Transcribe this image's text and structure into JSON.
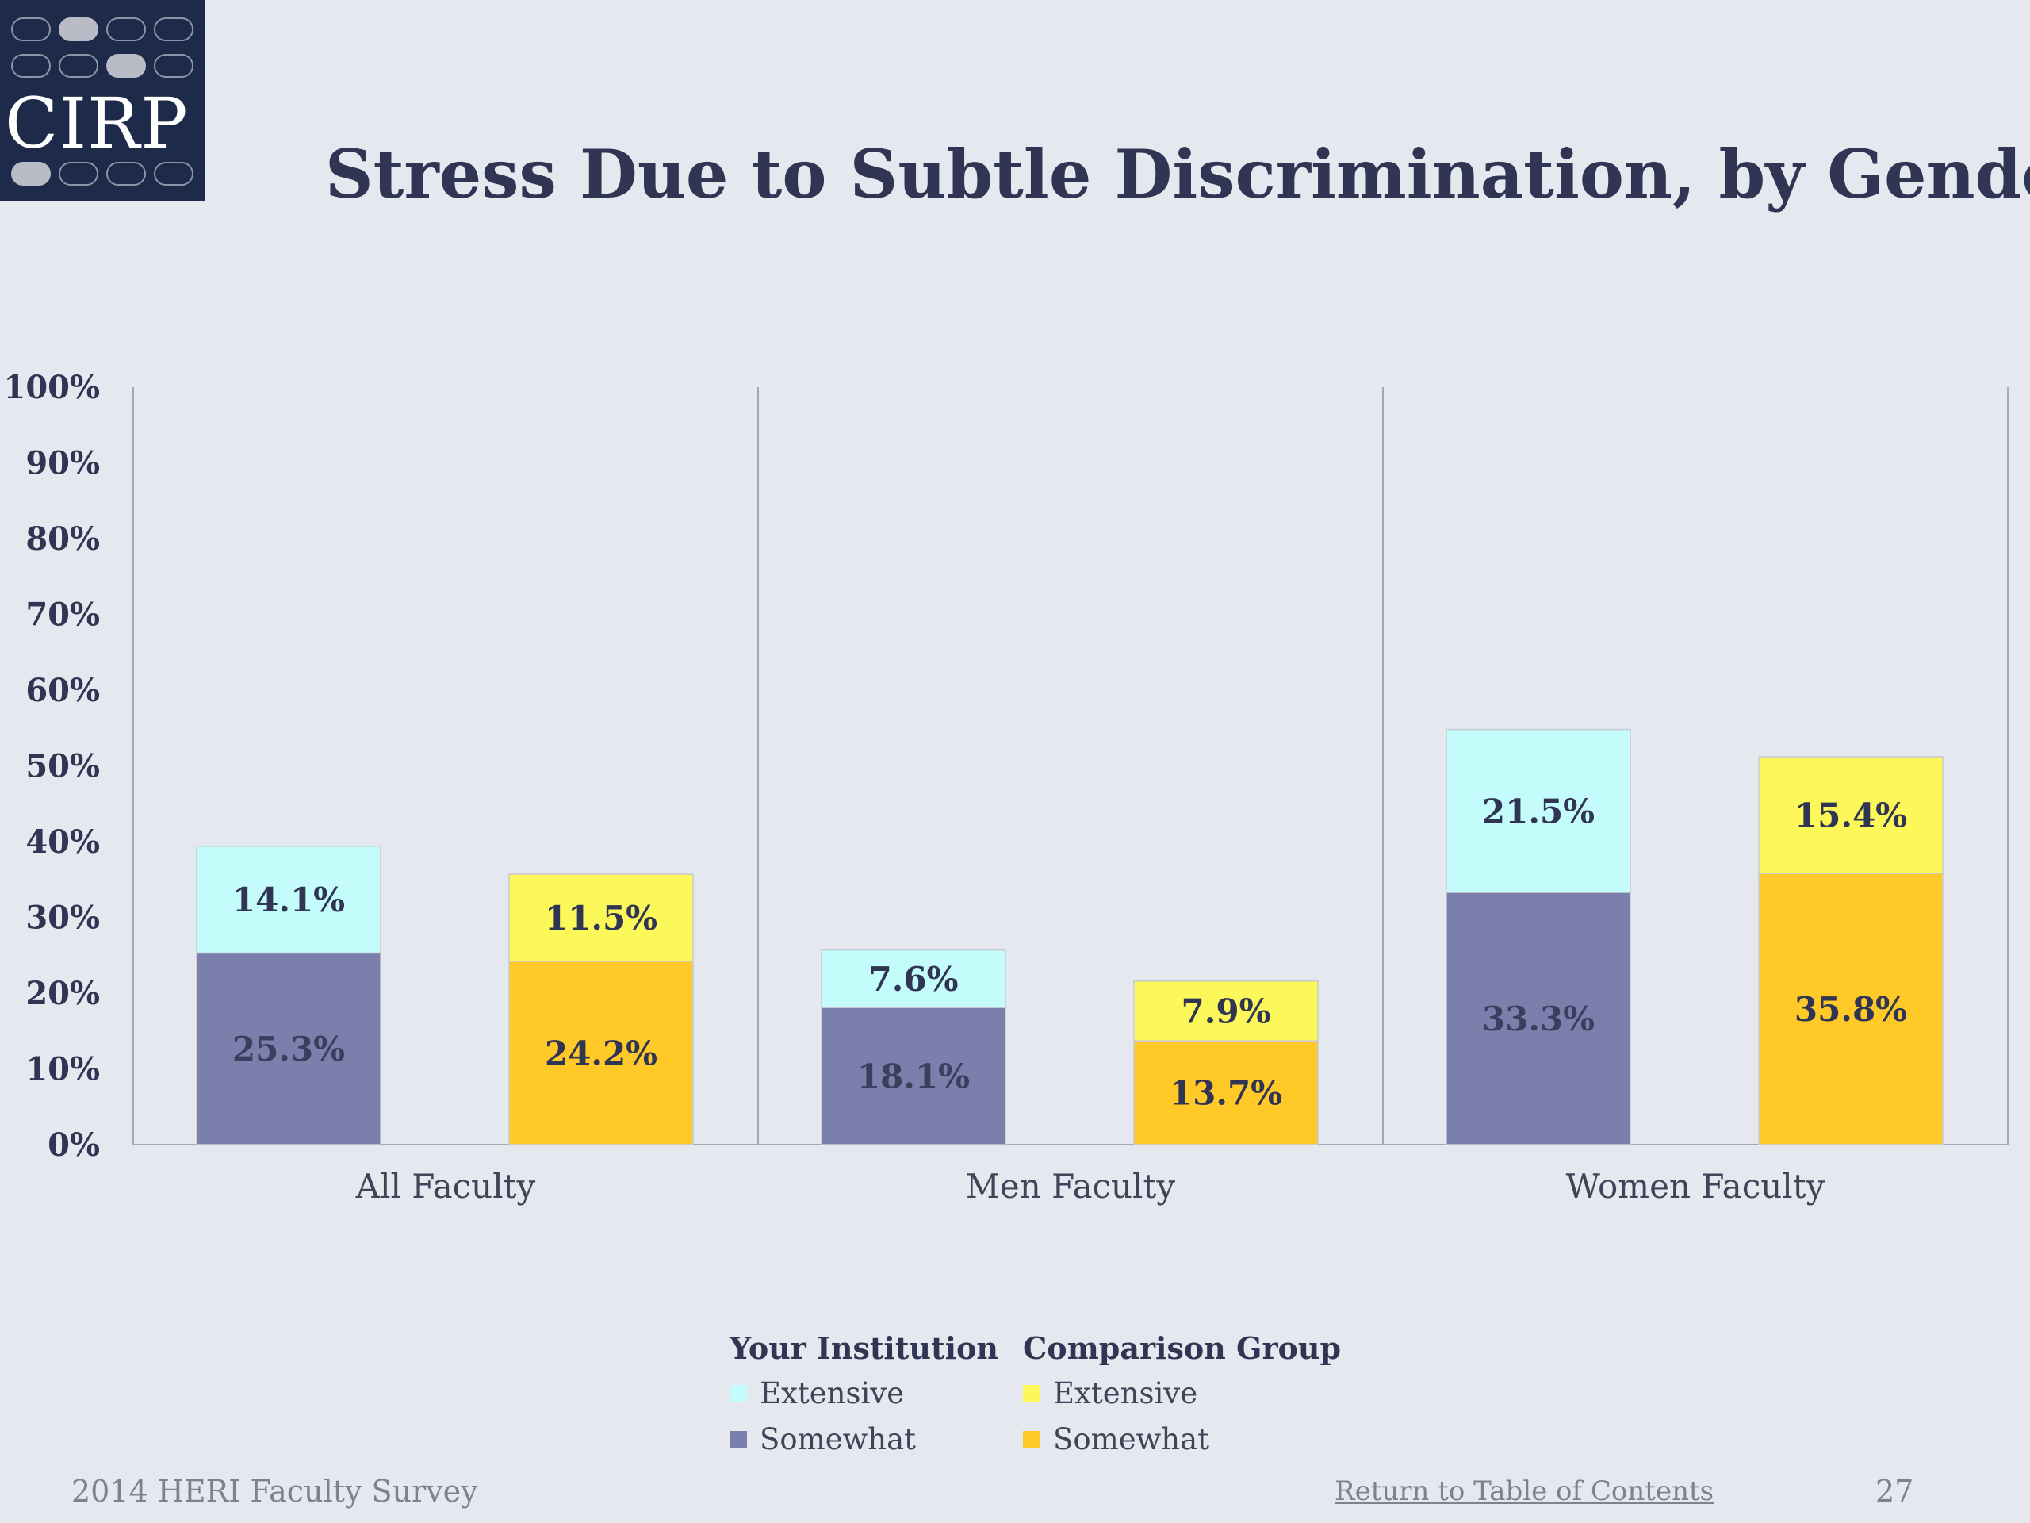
{
  "logo": {
    "text": "CIRP"
  },
  "title": "Stress Due to Subtle Discrimination, by Gender",
  "colors": {
    "inst_extensive": "#c4fbfb",
    "inst_somewhat": "#7a80ab",
    "comp_extensive": "#fdf85a",
    "comp_somewhat": "#ffc928",
    "background": "#e6e8ef",
    "axis": "#a5a8b4",
    "title": "#2f3552"
  },
  "chart_data": {
    "type": "bar",
    "stacked": true,
    "title": "Stress Due to Subtle Discrimination, by Gender",
    "xlabel": "",
    "ylabel": "",
    "ylim": [
      0,
      100
    ],
    "y_ticks": [
      "0%",
      "10%",
      "20%",
      "30%",
      "40%",
      "50%",
      "60%",
      "70%",
      "80%",
      "90%",
      "100%"
    ],
    "categories": [
      "All Faculty",
      "Men Faculty",
      "Women Faculty"
    ],
    "groups": [
      {
        "name": "Your Institution",
        "series": [
          {
            "name": "Somewhat",
            "values": [
              25.3,
              18.1,
              33.3
            ],
            "labels": [
              "25.3%",
              "18.1%",
              "33.3%"
            ],
            "color": "#7a80ab",
            "label_color": "#3a3f5e"
          },
          {
            "name": "Extensive",
            "values": [
              14.1,
              7.6,
              21.5
            ],
            "labels": [
              "14.1%",
              "7.6%",
              "21.5%"
            ],
            "color": "#c4fbfb",
            "label_color": "#2f3552"
          }
        ]
      },
      {
        "name": "Comparison Group",
        "series": [
          {
            "name": "Somewhat",
            "values": [
              24.2,
              13.7,
              35.8
            ],
            "labels": [
              "24.2%",
              "13.7%",
              "35.8%"
            ],
            "color": "#ffc928",
            "label_color": "#2f3552"
          },
          {
            "name": "Extensive",
            "values": [
              11.5,
              7.9,
              15.4
            ],
            "labels": [
              "11.5%",
              "7.9%",
              "15.4%"
            ],
            "color": "#fdf85a",
            "label_color": "#2f3552"
          }
        ]
      }
    ],
    "grid": false,
    "legend_position": "bottom-center"
  },
  "legend": {
    "inst_header": "Your Institution",
    "inst_extensive": "Extensive",
    "inst_somewhat": "Somewhat",
    "comp_header": "Comparison Group",
    "comp_extensive": "Extensive",
    "comp_somewhat": "Somewhat"
  },
  "footer": {
    "source": "2014 HERI Faculty Survey",
    "link": "Return to Table of Contents",
    "page": "27"
  }
}
